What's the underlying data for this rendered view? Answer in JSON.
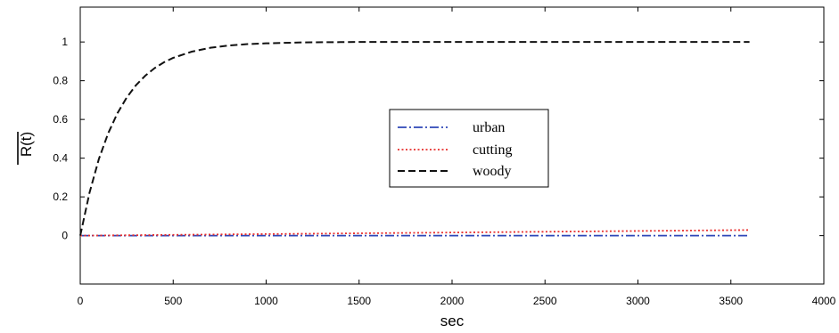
{
  "chart_data": {
    "type": "line",
    "title": "",
    "xlabel": "sec",
    "ylabel": "R(t)",
    "xlim": [
      0,
      4000
    ],
    "ylim": [
      -0.25,
      1.18
    ],
    "xticks": [
      0,
      500,
      1000,
      1500,
      2000,
      2500,
      3000,
      3500,
      4000
    ],
    "yticks": [
      0,
      0.2,
      0.4,
      0.6,
      0.8,
      1
    ],
    "ytick_labels": [
      "0",
      "0.2",
      "0.4",
      "0.6",
      "0.8",
      "1"
    ],
    "grid": false,
    "legend_position": "center-right",
    "series": [
      {
        "name": "urban",
        "color": "#2f47b8",
        "style": "dash-dot",
        "x": [
          0,
          500,
          1000,
          1500,
          2000,
          2500,
          3000,
          3600
        ],
        "y": [
          0,
          0,
          0,
          0,
          0,
          0,
          0,
          0
        ]
      },
      {
        "name": "cutting",
        "color": "#e8302f",
        "style": "dotted",
        "x": [
          0,
          500,
          1000,
          1500,
          2000,
          2500,
          3000,
          3600
        ],
        "y": [
          0,
          0.004,
          0.008,
          0.012,
          0.016,
          0.02,
          0.024,
          0.029
        ]
      },
      {
        "name": "woody",
        "color": "#111111",
        "style": "dashed",
        "x": [
          0,
          50,
          100,
          150,
          200,
          250,
          300,
          350,
          400,
          450,
          500,
          600,
          700,
          800,
          900,
          1000,
          1200,
          1500,
          2000,
          2500,
          3000,
          3600
        ],
        "y": [
          0,
          0.222,
          0.395,
          0.528,
          0.632,
          0.713,
          0.777,
          0.826,
          0.865,
          0.895,
          0.918,
          0.95,
          0.97,
          0.982,
          0.989,
          0.993,
          0.998,
          1.0,
          1.0,
          1.0,
          1.0,
          1.0
        ]
      }
    ]
  }
}
